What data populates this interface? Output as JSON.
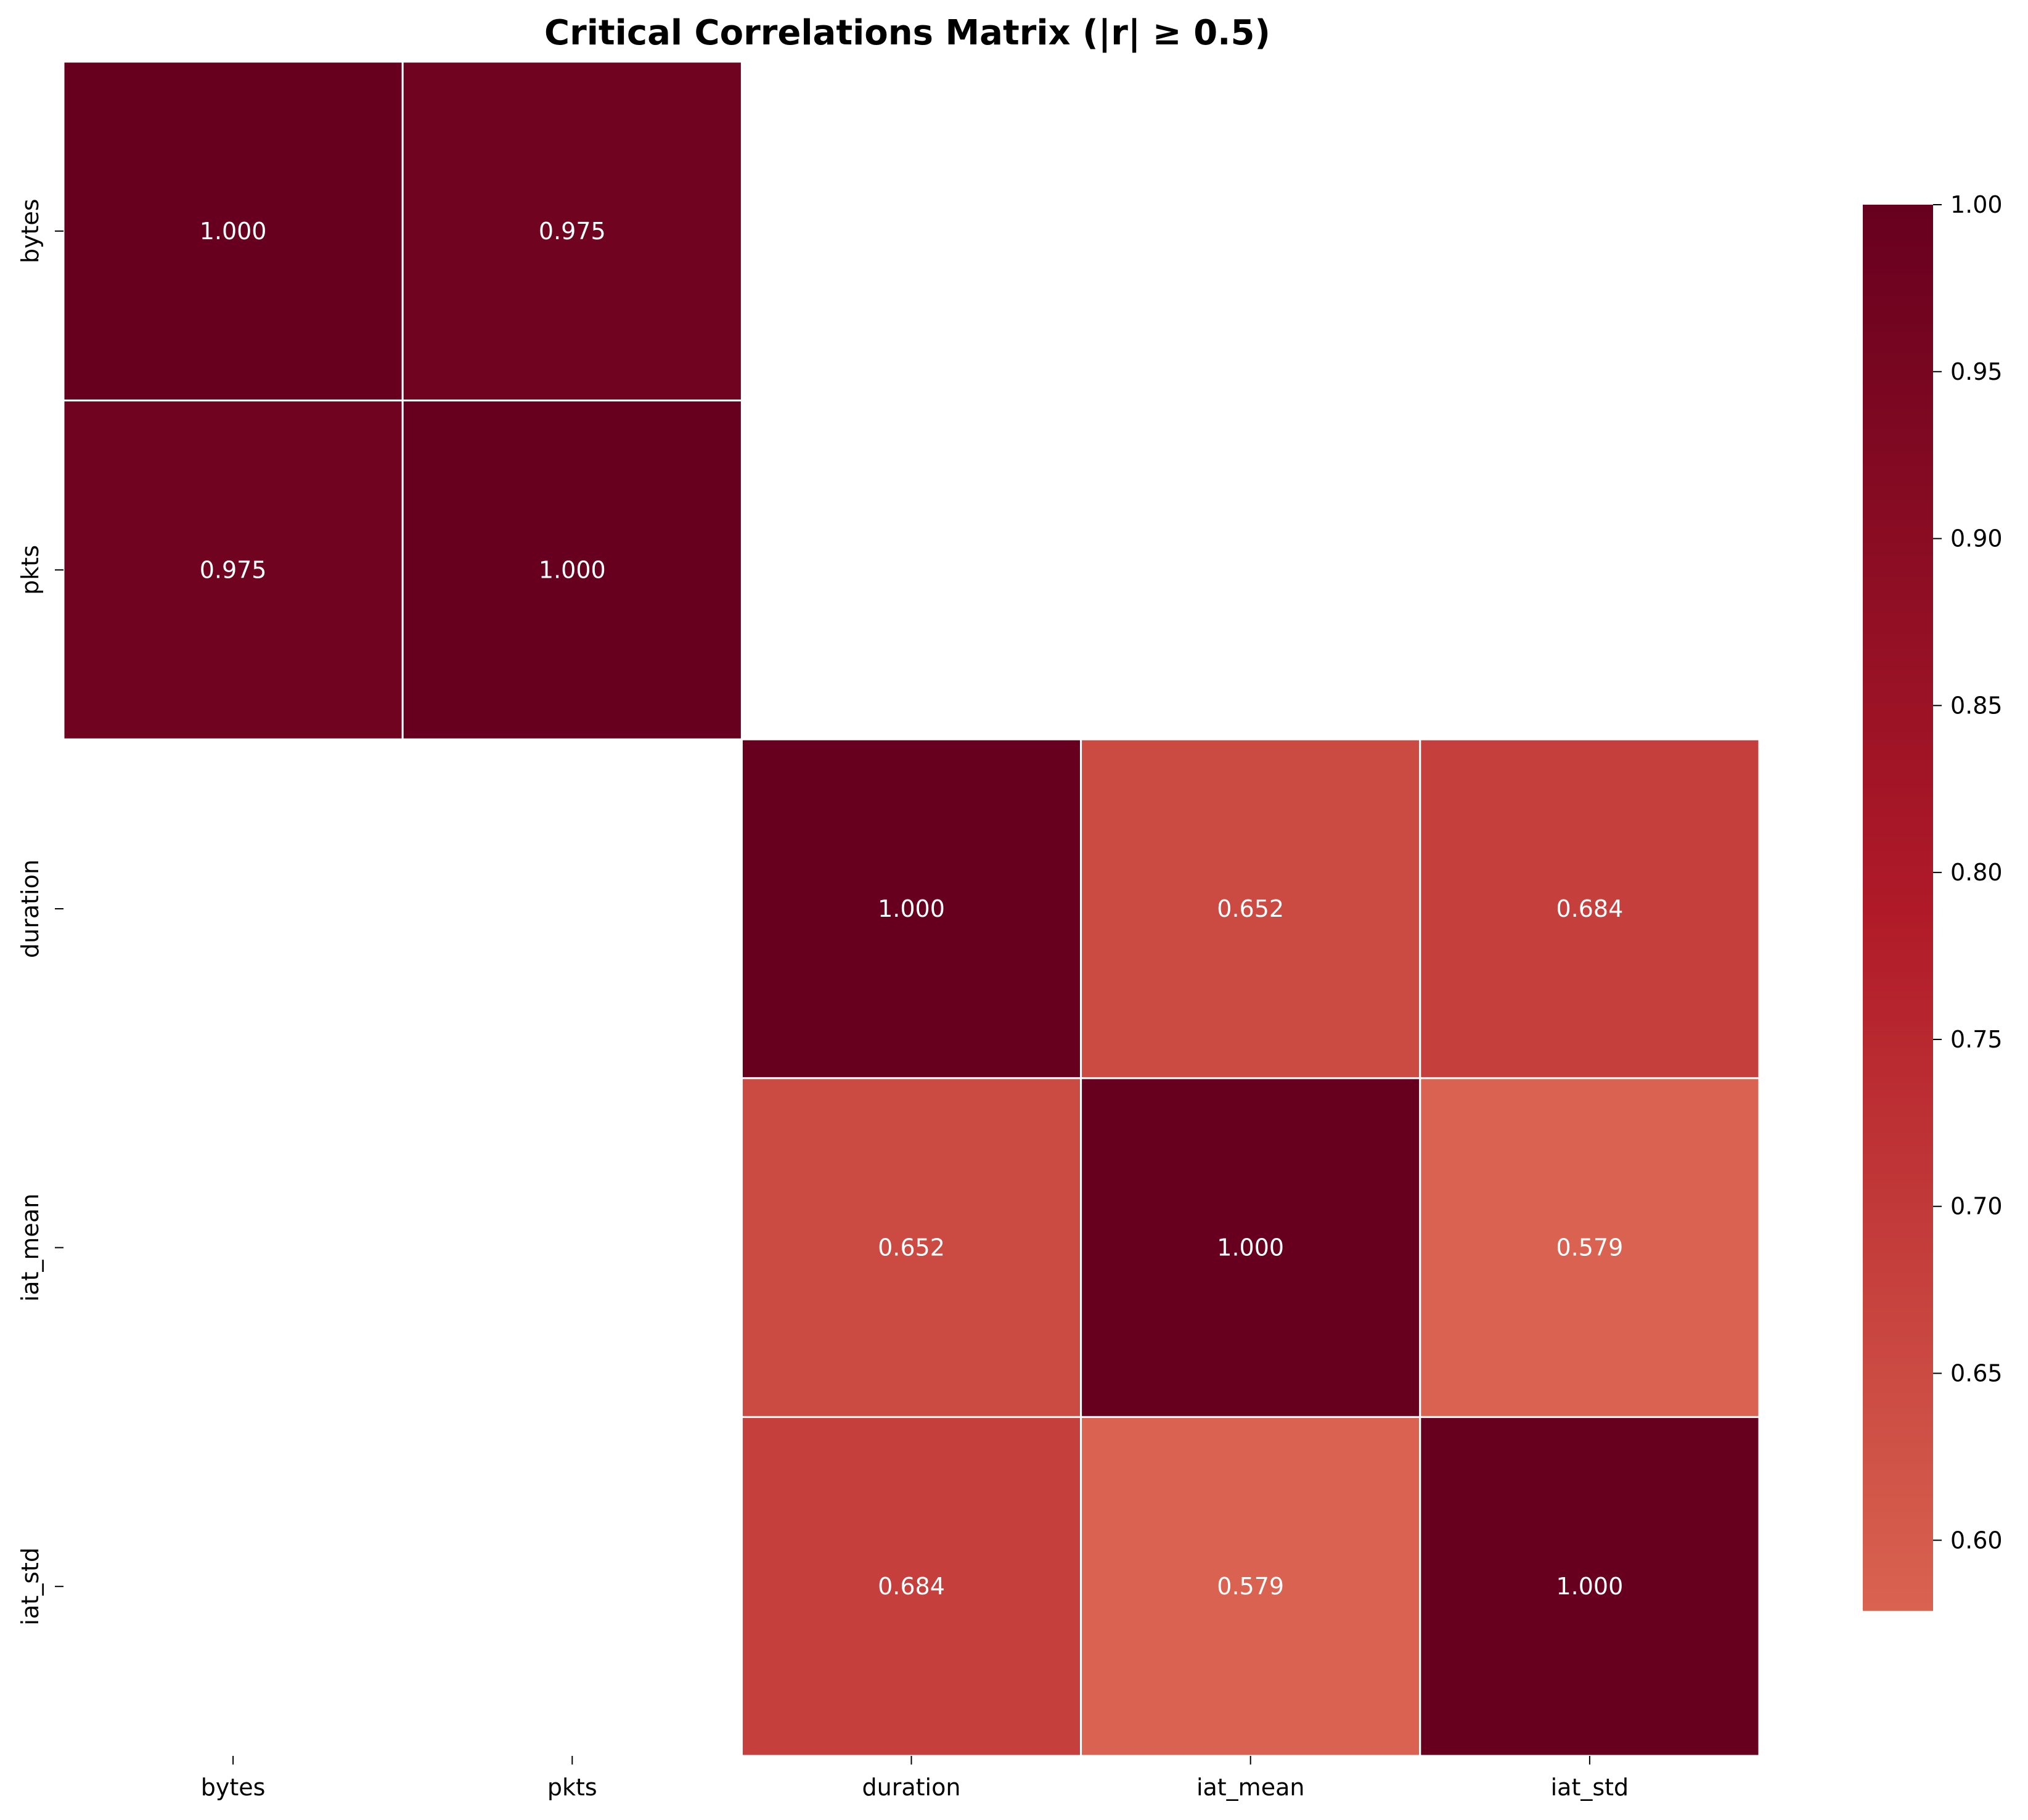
{
  "chart_data": {
    "type": "heatmap",
    "title": "Critical Correlations Matrix (|r| ≥ 0.5)",
    "xlabel": "",
    "ylabel": "",
    "x_categories": [
      "bytes",
      "pkts",
      "duration",
      "iat_mean",
      "iat_std"
    ],
    "y_categories": [
      "bytes",
      "pkts",
      "duration",
      "iat_mean",
      "iat_std"
    ],
    "values": [
      [
        1.0,
        0.975,
        null,
        null,
        null
      ],
      [
        0.975,
        1.0,
        null,
        null,
        null
      ],
      [
        null,
        null,
        1.0,
        0.652,
        0.684
      ],
      [
        null,
        null,
        0.652,
        1.0,
        0.579
      ],
      [
        null,
        null,
        0.684,
        0.579,
        1.0
      ]
    ],
    "value_labels": [
      [
        "1.000",
        "0.975",
        "",
        "",
        ""
      ],
      [
        "0.975",
        "1.000",
        "",
        "",
        ""
      ],
      [
        "",
        "",
        "1.000",
        "0.652",
        "0.684"
      ],
      [
        "",
        "",
        "0.652",
        "1.000",
        "0.579"
      ],
      [
        "",
        "",
        "0.684",
        "0.579",
        "1.000"
      ]
    ],
    "colorbar": {
      "range": [
        0.579,
        1.0
      ],
      "ticks": [
        0.6,
        0.65,
        0.7,
        0.75,
        0.8,
        0.85,
        0.9,
        0.95,
        1.0
      ],
      "tick_labels": [
        "0.60",
        "0.65",
        "0.70",
        "0.75",
        "0.80",
        "0.85",
        "0.90",
        "0.95",
        "1.00"
      ],
      "colormap": "Reds (upper range)"
    },
    "colors": {
      "min": "#d96350",
      "mid": "#b01a28",
      "max": "#67001f",
      "cell_border": "#ffffff",
      "annotation_text": "#ffffff"
    },
    "grid": false,
    "legend": "colorbar-right"
  }
}
